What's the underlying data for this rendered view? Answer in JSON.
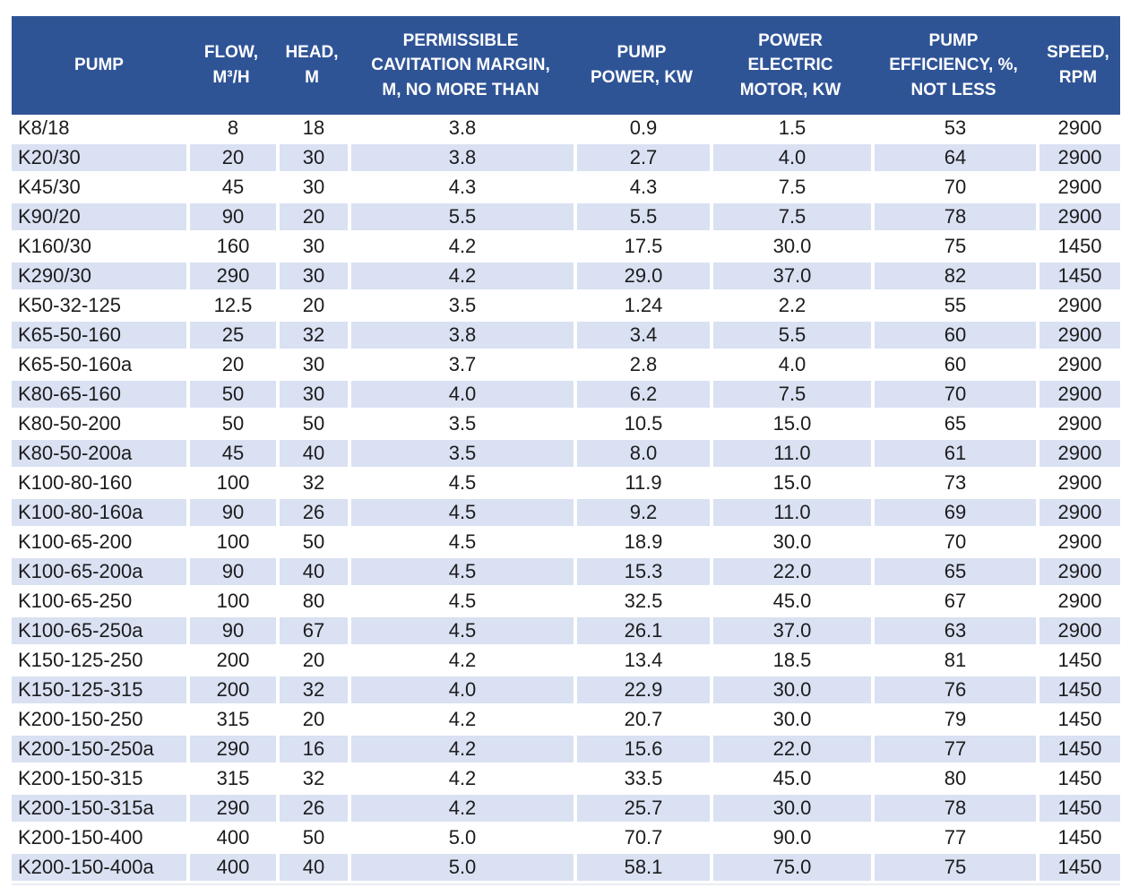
{
  "colors": {
    "header_bg": "#2F5496",
    "header_text": "#ffffff",
    "band_row_bg": "#D9E1F2",
    "plain_row_bg": "#ffffff",
    "cell_text": "#1c1c1e"
  },
  "chart_data": {
    "type": "table",
    "title": "Pump specifications table",
    "columns": [
      "PUMP",
      "FLOW, M³/H",
      "HEAD, M",
      "PERMISSIBLE CAVITATION MARGIN, M, NO MORE THAN",
      "PUMP POWER, KW",
      "POWER ELECTRIC MOTOR, KW",
      "PUMP EFFICIENCY, %, NOT LESS",
      "SPEED, RPM"
    ],
    "column_display_lines": [
      [
        "PUMP"
      ],
      [
        "FLOW,",
        "M³/H"
      ],
      [
        "HEAD,",
        "M"
      ],
      [
        "PERMISSIBLE",
        "CAVITATION MARGIN,",
        "M, NO MORE THAN"
      ],
      [
        "PUMP",
        "POWER, KW"
      ],
      [
        "POWER",
        "ELECTRIC",
        "MOTOR, KW"
      ],
      [
        "PUMP",
        "EFFICIENCY, %,",
        "NOT LESS"
      ],
      [
        "SPEED,",
        "RPM"
      ]
    ],
    "rows": [
      [
        "K8/18",
        "8",
        "18",
        "3.8",
        "0.9",
        "1.5",
        "53",
        "2900"
      ],
      [
        "K20/30",
        "20",
        "30",
        "3.8",
        "2.7",
        "4.0",
        "64",
        "2900"
      ],
      [
        "K45/30",
        "45",
        "30",
        "4.3",
        "4.3",
        "7.5",
        "70",
        "2900"
      ],
      [
        "K90/20",
        "90",
        "20",
        "5.5",
        "5.5",
        "7.5",
        "78",
        "2900"
      ],
      [
        "K160/30",
        "160",
        "30",
        "4.2",
        "17.5",
        "30.0",
        "75",
        "1450"
      ],
      [
        "K290/30",
        "290",
        "30",
        "4.2",
        "29.0",
        "37.0",
        "82",
        "1450"
      ],
      [
        "K50-32-125",
        "12.5",
        "20",
        "3.5",
        "1.24",
        "2.2",
        "55",
        "2900"
      ],
      [
        "K65-50-160",
        "25",
        "32",
        "3.8",
        "3.4",
        "5.5",
        "60",
        "2900"
      ],
      [
        "K65-50-160a",
        "20",
        "30",
        "3.7",
        "2.8",
        "4.0",
        "60",
        "2900"
      ],
      [
        "K80-65-160",
        "50",
        "30",
        "4.0",
        "6.2",
        "7.5",
        "70",
        "2900"
      ],
      [
        "K80-50-200",
        "50",
        "50",
        "3.5",
        "10.5",
        "15.0",
        "65",
        "2900"
      ],
      [
        "K80-50-200a",
        "45",
        "40",
        "3.5",
        "8.0",
        "11.0",
        "61",
        "2900"
      ],
      [
        "K100-80-160",
        "100",
        "32",
        "4.5",
        "11.9",
        "15.0",
        "73",
        "2900"
      ],
      [
        "K100-80-160a",
        "90",
        "26",
        "4.5",
        "9.2",
        "11.0",
        "69",
        "2900"
      ],
      [
        "K100-65-200",
        "100",
        "50",
        "4.5",
        "18.9",
        "30.0",
        "70",
        "2900"
      ],
      [
        "K100-65-200a",
        "90",
        "40",
        "4.5",
        "15.3",
        "22.0",
        "65",
        "2900"
      ],
      [
        "K100-65-250",
        "100",
        "80",
        "4.5",
        "32.5",
        "45.0",
        "67",
        "2900"
      ],
      [
        "K100-65-250a",
        "90",
        "67",
        "4.5",
        "26.1",
        "37.0",
        "63",
        "2900"
      ],
      [
        "K150-125-250",
        "200",
        "20",
        "4.2",
        "13.4",
        "18.5",
        "81",
        "1450"
      ],
      [
        "K150-125-315",
        "200",
        "32",
        "4.0",
        "22.9",
        "30.0",
        "76",
        "1450"
      ],
      [
        "K200-150-250",
        "315",
        "20",
        "4.2",
        "20.7",
        "30.0",
        "79",
        "1450"
      ],
      [
        "K200-150-250a",
        "290",
        "16",
        "4.2",
        "15.6",
        "22.0",
        "77",
        "1450"
      ],
      [
        "K200-150-315",
        "315",
        "32",
        "4.2",
        "33.5",
        "45.0",
        "80",
        "1450"
      ],
      [
        "K200-150-315a",
        "290",
        "26",
        "4.2",
        "25.7",
        "30.0",
        "78",
        "1450"
      ],
      [
        "K200-150-400",
        "400",
        "50",
        "5.0",
        "70.7",
        "90.0",
        "77",
        "1450"
      ],
      [
        "K200-150-400a",
        "400",
        "40",
        "5.0",
        "58.1",
        "75.0",
        "75",
        "1450"
      ]
    ]
  }
}
